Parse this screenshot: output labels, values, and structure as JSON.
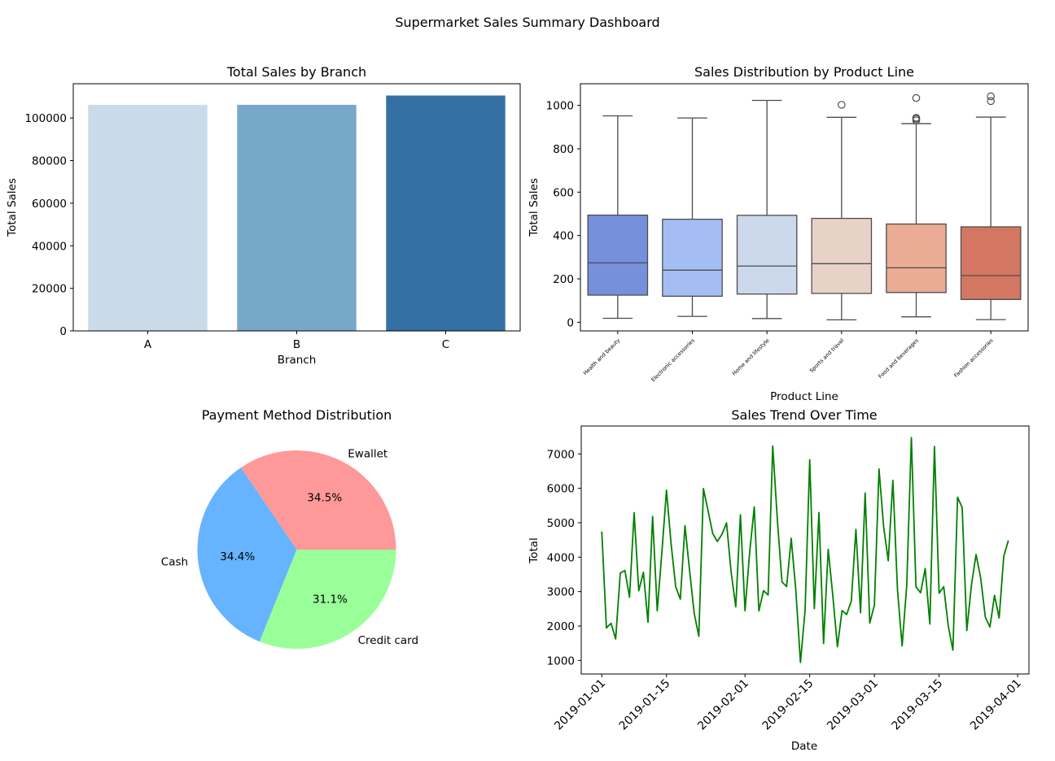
{
  "suptitle": "Supermarket Sales Summary Dashboard",
  "chart_data": [
    {
      "type": "bar",
      "title": "Total Sales by Branch",
      "xlabel": "Branch",
      "ylabel": "Total Sales",
      "categories": [
        "A",
        "B",
        "C"
      ],
      "values": [
        106200,
        106198,
        110569
      ],
      "ylim": [
        0,
        116100
      ],
      "yticks": [
        0,
        20000,
        40000,
        60000,
        80000,
        100000
      ],
      "colors": [
        "#c9daea",
        "#78a8c8",
        "#3570a4"
      ],
      "grid": false
    },
    {
      "type": "box",
      "title": "Sales Distribution by Product Line",
      "xlabel": "Product Line",
      "ylabel": "Total Sales",
      "categories": [
        "Health and beauty",
        "Electronic accessories",
        "Home and lifestyle",
        "Sports and travel",
        "Food and beverages",
        "Fashion accessories"
      ],
      "boxes": [
        {
          "whislo": 18,
          "q1": 125,
          "med": 274,
          "q3": 494,
          "whishi": 952,
          "fliers": []
        },
        {
          "whislo": 27,
          "q1": 120,
          "med": 240,
          "q3": 475,
          "whishi": 942,
          "fliers": []
        },
        {
          "whislo": 17,
          "q1": 130,
          "med": 259,
          "q3": 493,
          "whishi": 1023,
          "fliers": []
        },
        {
          "whislo": 11,
          "q1": 133,
          "med": 270,
          "q3": 479,
          "whishi": 945,
          "fliers": [
            1003
          ]
        },
        {
          "whislo": 25,
          "q1": 137,
          "med": 251,
          "q3": 453,
          "whishi": 916,
          "fliers": [
            931,
            938,
            943,
            1034
          ]
        },
        {
          "whislo": 12,
          "q1": 105,
          "med": 215,
          "q3": 440,
          "whishi": 946,
          "fliers": [
            1020,
            1042
          ]
        }
      ],
      "ylim": [
        -40,
        1100
      ],
      "yticks": [
        0,
        200,
        400,
        600,
        800,
        1000
      ],
      "colors": [
        "#7690dc",
        "#a4bef4",
        "#ccd8ec",
        "#e8d2c8",
        "#eaac94",
        "#d37662"
      ],
      "grid": false
    },
    {
      "type": "pie",
      "title": "Payment Method Distribution",
      "labels": [
        "Ewallet",
        "Cash",
        "Credit card"
      ],
      "values": [
        34.5,
        34.4,
        31.1
      ],
      "pct_labels": [
        "34.5%",
        "34.4%",
        "31.1%"
      ],
      "colors": [
        "#ff9999",
        "#66b3ff",
        "#99ff99"
      ]
    },
    {
      "type": "line",
      "title": "Sales Trend Over Time",
      "xlabel": "Date",
      "ylabel": "Total",
      "start_date": "2019-01-01",
      "y": [
        4745,
        1945,
        2079,
        1624,
        3536,
        3615,
        2838,
        5293,
        3023,
        3560,
        2111,
        5185,
        2443,
        4130,
        5945,
        4385,
        3142,
        2780,
        4916,
        3614,
        2370,
        1703,
        5994,
        5350,
        4690,
        4456,
        4662,
        4995,
        3559,
        2558,
        5233,
        2443,
        4136,
        5460,
        2438,
        3029,
        2901,
        7229,
        5080,
        3282,
        3146,
        4548,
        3031,
        942,
        2454,
        6830,
        2505,
        5296,
        1492,
        4229,
        2879,
        1397,
        2449,
        2334,
        2726,
        4807,
        2388,
        5865,
        2087,
        2610,
        6560,
        4885,
        3897,
        6230,
        3045,
        1423,
        3182,
        7474,
        3138,
        2967,
        3670,
        2059,
        7216,
        2955,
        3142,
        1995,
        1299,
        5744,
        5439,
        1868,
        3187,
        4077,
        3398,
        2265,
        1969,
        2891,
        2235,
        4032,
        4487
      ],
      "xlim": [
        -4.45,
        92.45
      ],
      "ylim": [
        606,
        7810
      ],
      "yticks": [
        1000,
        2000,
        3000,
        4000,
        5000,
        6000,
        7000
      ],
      "xtick_labels": [
        "2019-01-01",
        "2019-01-15",
        "2019-02-01",
        "2019-02-15",
        "2019-03-01",
        "2019-03-15",
        "2019-04-01"
      ],
      "color": "#008000",
      "grid": false
    }
  ]
}
